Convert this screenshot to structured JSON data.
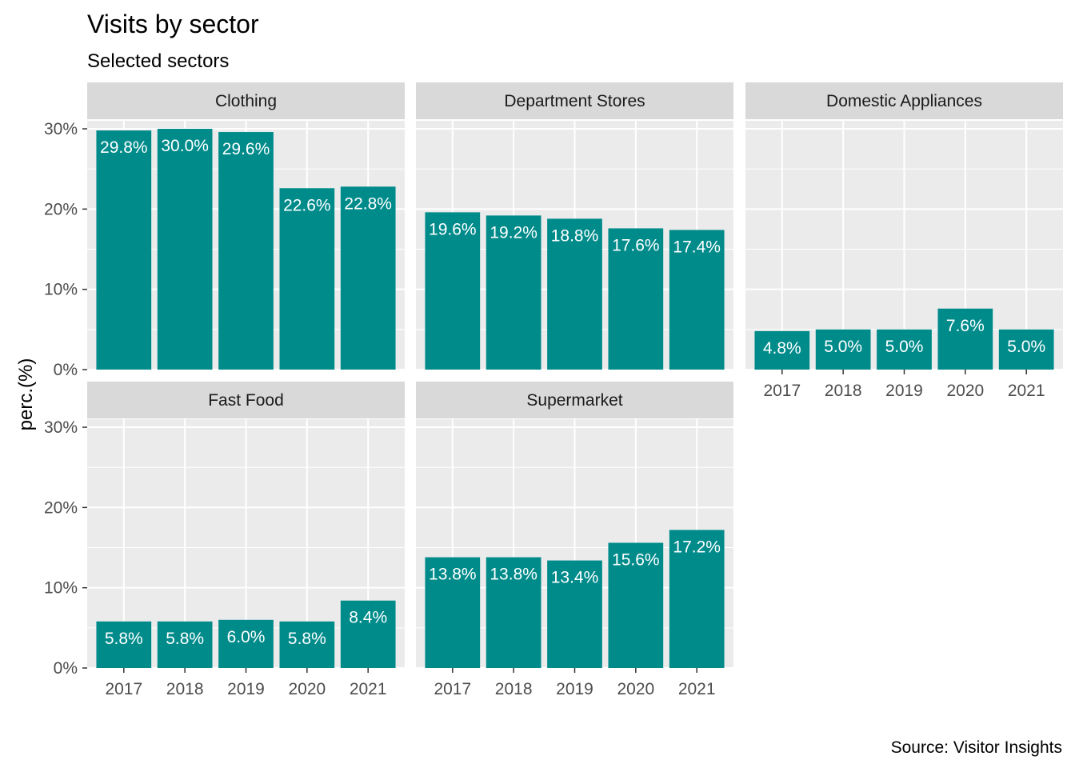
{
  "chart_data": {
    "type": "bar",
    "title": "Visits by sector",
    "subtitle": "Selected sectors",
    "caption": "Source: Visitor Insights",
    "ylabel": "perc.(%)",
    "xlabel": "",
    "categories": [
      "2017",
      "2018",
      "2019",
      "2020",
      "2021"
    ],
    "ylim": [
      0,
      0.31
    ],
    "yticks": [
      0,
      0.1,
      0.2,
      0.3
    ],
    "ytick_labels": [
      "0%",
      "10%",
      "20%",
      "30%"
    ],
    "grid": true,
    "legend": "none",
    "bar_color": "#008b8b",
    "panel_bg": "#ebebeb",
    "strip_bg": "#d9d9d9",
    "facets": [
      {
        "name": "Clothing",
        "values": [
          0.298,
          0.3,
          0.296,
          0.226,
          0.228
        ],
        "labels": [
          "29.8%",
          "30.0%",
          "29.6%",
          "22.6%",
          "22.8%"
        ]
      },
      {
        "name": "Department Stores",
        "values": [
          0.196,
          0.192,
          0.188,
          0.176,
          0.174
        ],
        "labels": [
          "19.6%",
          "19.2%",
          "18.8%",
          "17.6%",
          "17.4%"
        ]
      },
      {
        "name": "Domestic Appliances",
        "values": [
          0.048,
          0.05,
          0.05,
          0.076,
          0.05
        ],
        "labels": [
          "4.8%",
          "5.0%",
          "5.0%",
          "7.6%",
          "5.0%"
        ]
      },
      {
        "name": "Fast Food",
        "values": [
          0.058,
          0.058,
          0.06,
          0.058,
          0.084
        ],
        "labels": [
          "5.8%",
          "5.8%",
          "6.0%",
          "5.8%",
          "8.4%"
        ]
      },
      {
        "name": "Supermarket",
        "values": [
          0.138,
          0.138,
          0.134,
          0.156,
          0.172
        ],
        "labels": [
          "13.8%",
          "13.8%",
          "13.4%",
          "15.6%",
          "17.2%"
        ]
      }
    ]
  }
}
